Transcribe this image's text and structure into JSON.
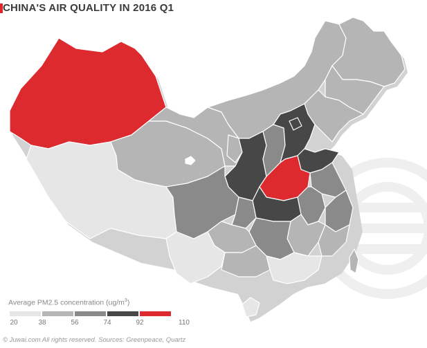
{
  "title": "CHINA'S AIR QUALITY IN 2016 Q1",
  "accent_color": "#e0262b",
  "legend": {
    "title": "Average PM2.5 concentration (ug/m",
    "unit_sup": "3",
    "title_end": ")",
    "ticks": [
      "20",
      "38",
      "56",
      "74",
      "92",
      "110"
    ],
    "colors": [
      "#e6e6e6",
      "#b5b5b5",
      "#8a8a8a",
      "#474747",
      "#dd2a2e"
    ]
  },
  "footer": "© Juwai.com All rights reserved. Sources: Greenpeace, Quartz",
  "map": {
    "stroke_color": "#ffffff",
    "shadow_color": "#d2d2d2",
    "watermark_color": "#efefef"
  }
}
